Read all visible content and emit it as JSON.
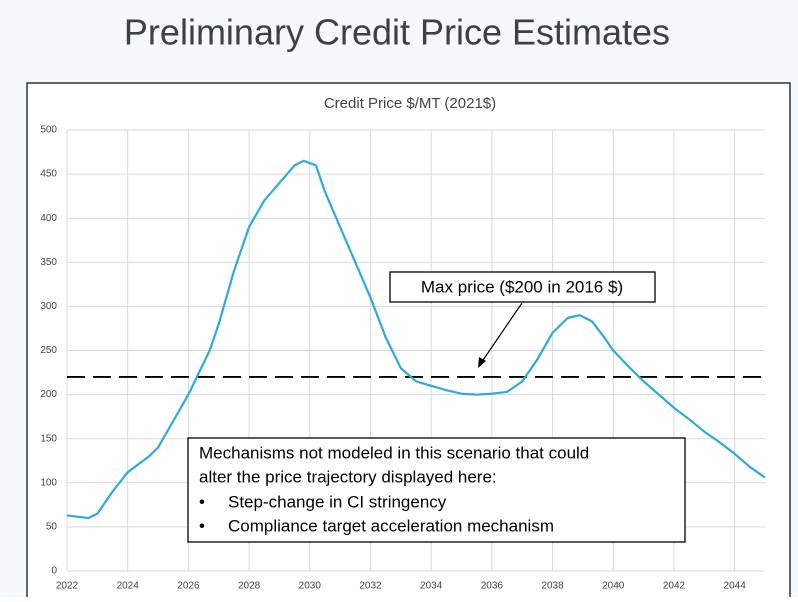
{
  "slide_title": "Preliminary Credit Price Estimates",
  "chart_data": {
    "type": "line",
    "title": "Credit Price $/MT (2021$)",
    "x": [
      2022,
      2022.7,
      2023,
      2023.5,
      2024,
      2024.7,
      2025,
      2025.5,
      2026,
      2026.7,
      2027,
      2027.5,
      2028,
      2028.5,
      2029,
      2029.5,
      2029.8,
      2030.2,
      2030.5,
      2031,
      2031.5,
      2032,
      2032.5,
      2033,
      2033.5,
      2034,
      2034.5,
      2035,
      2035.5,
      2036,
      2036.5,
      2037,
      2037.5,
      2038,
      2038.5,
      2038.9,
      2039.3,
      2039.7,
      2040,
      2040.5,
      2041,
      2041.5,
      2042,
      2042.5,
      2043,
      2043.5,
      2044,
      2044.5,
      2045
    ],
    "series": [
      {
        "name": "Credit Price",
        "color": "#2eaadc",
        "values": [
          63,
          60,
          65,
          90,
          112,
          130,
          140,
          170,
          200,
          250,
          280,
          340,
          390,
          420,
          440,
          460,
          465,
          460,
          430,
          390,
          350,
          310,
          265,
          230,
          215,
          210,
          205,
          201,
          200,
          201,
          203,
          215,
          240,
          270,
          287,
          290,
          283,
          265,
          250,
          232,
          215,
          200,
          185,
          172,
          158,
          146,
          133,
          118,
          106
        ]
      }
    ],
    "reference_line": 220,
    "xlim": [
      2022,
      2045
    ],
    "xticks": [
      2022,
      2024,
      2026,
      2028,
      2030,
      2032,
      2034,
      2036,
      2038,
      2040,
      2042,
      2044
    ],
    "ylim": [
      0,
      500
    ],
    "yticks": [
      0,
      50,
      100,
      150,
      200,
      250,
      300,
      350,
      400,
      450,
      500
    ],
    "grid": true,
    "annotation": "Max price ($200 in 2016 $)",
    "note": {
      "lines": [
        "Mechanisms not modeled in this scenario that could",
        "alter the price trajectory displayed here:"
      ],
      "bullets": [
        "Step-change in CI stringency",
        "Compliance target acceleration mechanism"
      ]
    }
  }
}
